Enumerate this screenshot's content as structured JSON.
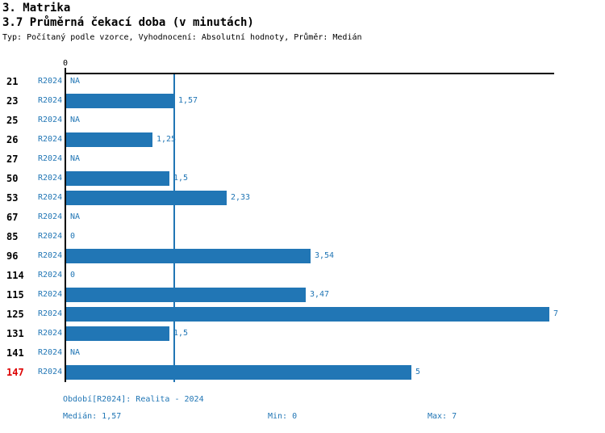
{
  "header": {
    "title": "3. Matrika",
    "subtitle": "3.7 Průměrná čekací doba (v minutách)",
    "meta": "Typ: Počítaný podle vzorce, Vyhodnocení: Absolutní hodnoty, Průměr: Medián"
  },
  "chart_data": {
    "type": "bar",
    "orientation": "horizontal",
    "title": "3.7 Průměrná čekací doba (v minutách)",
    "series_name": "R2024",
    "axis": {
      "origin_label": "0",
      "xmin": 0,
      "xmax": 7
    },
    "median_reference_line": 1.57,
    "grid": false,
    "categories": [
      "21",
      "23",
      "25",
      "26",
      "27",
      "50",
      "53",
      "67",
      "85",
      "96",
      "114",
      "115",
      "125",
      "131",
      "141",
      "147"
    ],
    "rows": [
      {
        "category": "21",
        "period": "R2024",
        "value": null,
        "label": "NA",
        "highlight": false
      },
      {
        "category": "23",
        "period": "R2024",
        "value": 1.57,
        "label": "1,57",
        "highlight": false
      },
      {
        "category": "25",
        "period": "R2024",
        "value": null,
        "label": "NA",
        "highlight": false
      },
      {
        "category": "26",
        "period": "R2024",
        "value": 1.25,
        "label": "1,25",
        "highlight": false
      },
      {
        "category": "27",
        "period": "R2024",
        "value": null,
        "label": "NA",
        "highlight": false
      },
      {
        "category": "50",
        "period": "R2024",
        "value": 1.5,
        "label": "1,5",
        "highlight": false
      },
      {
        "category": "53",
        "period": "R2024",
        "value": 2.33,
        "label": "2,33",
        "highlight": false
      },
      {
        "category": "67",
        "period": "R2024",
        "value": null,
        "label": "NA",
        "highlight": false
      },
      {
        "category": "85",
        "period": "R2024",
        "value": 0,
        "label": "0",
        "highlight": false
      },
      {
        "category": "96",
        "period": "R2024",
        "value": 3.54,
        "label": "3,54",
        "highlight": false
      },
      {
        "category": "114",
        "period": "R2024",
        "value": 0,
        "label": "0",
        "highlight": false
      },
      {
        "category": "115",
        "period": "R2024",
        "value": 3.47,
        "label": "3,47",
        "highlight": false
      },
      {
        "category": "125",
        "period": "R2024",
        "value": 7,
        "label": "7",
        "highlight": false
      },
      {
        "category": "131",
        "period": "R2024",
        "value": 1.5,
        "label": "1,5",
        "highlight": false
      },
      {
        "category": "141",
        "period": "R2024",
        "value": null,
        "label": "NA",
        "highlight": false
      },
      {
        "category": "147",
        "period": "R2024",
        "value": 5,
        "label": "5",
        "highlight": true
      }
    ]
  },
  "footer": {
    "period_info": "Období[R2024]: Realita - 2024",
    "median": "Medián: 1,57",
    "min": "Min: 0",
    "max": "Max: 7"
  },
  "colors": {
    "bar_blue": "#2176b5",
    "text_blue": "#2176b5",
    "highlight_red": "#dd0000",
    "axis_black": "#000000"
  }
}
